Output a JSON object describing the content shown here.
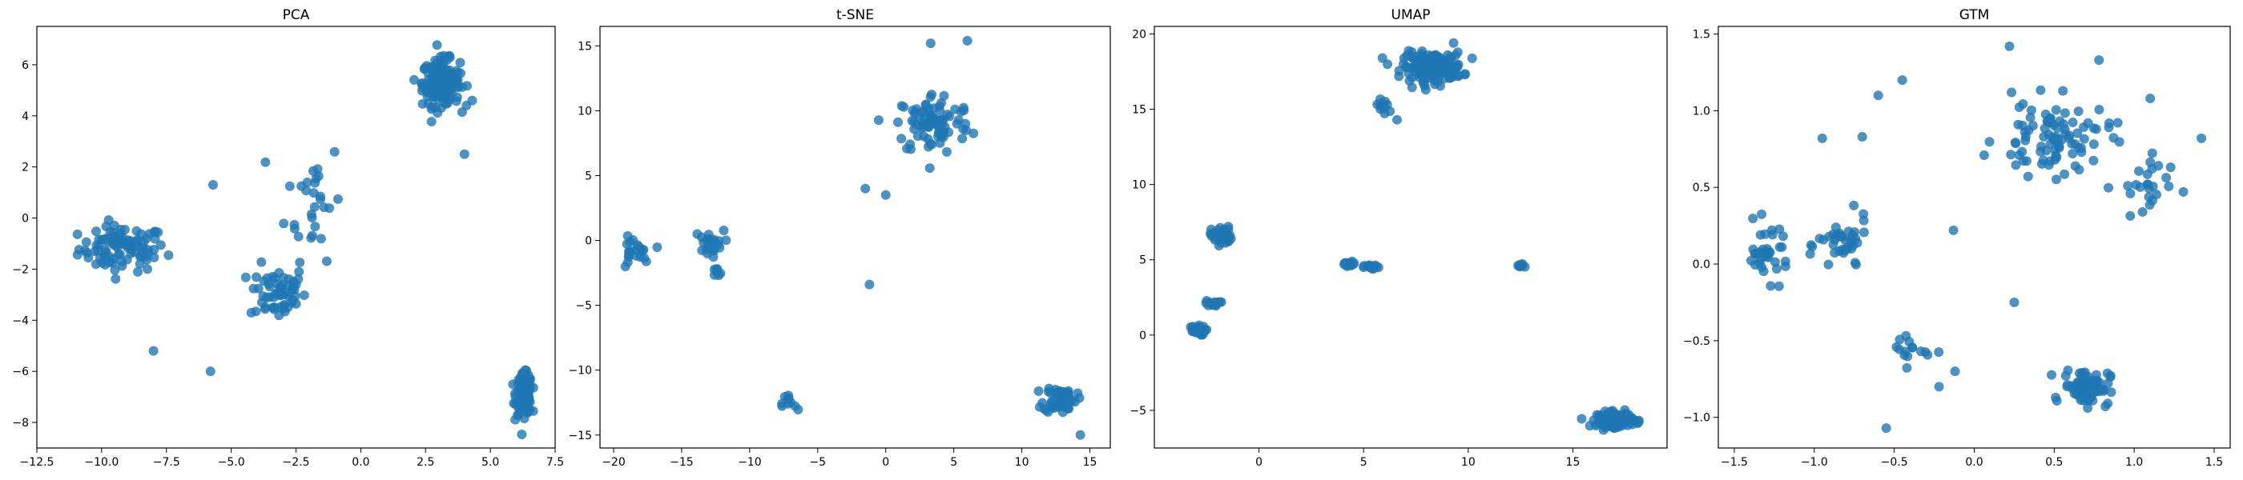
{
  "chart_data": [
    {
      "type": "scatter",
      "title": "PCA",
      "color": "#1f77b4",
      "xlim": [
        -12.5,
        7.5
      ],
      "ylim": [
        -9,
        7.5
      ],
      "xticks": [
        -12.5,
        -10.0,
        -7.5,
        -5.0,
        -2.5,
        0.0,
        2.5,
        5.0,
        7.5
      ],
      "xtick_labels": [
        "−12.5",
        "−10.0",
        "−7.5",
        "−5.0",
        "−2.5",
        "0.0",
        "2.5",
        "5.0",
        "7.5"
      ],
      "yticks": [
        -8,
        -6,
        -4,
        -2,
        0,
        2,
        4,
        6
      ],
      "ytick_labels": [
        "−8",
        "−6",
        "−4",
        "−2",
        "0",
        "2",
        "4",
        "6"
      ],
      "clusters": [
        {
          "center": [
            -9.2,
            -1.2
          ],
          "spread": [
            1.4,
            0.75
          ],
          "count": 95
        },
        {
          "center": [
            -3.2,
            -2.9
          ],
          "spread": [
            0.9,
            0.9
          ],
          "count": 60
        },
        {
          "center": [
            -1.8,
            0.8
          ],
          "spread": [
            0.9,
            2.0
          ],
          "count": 30
        },
        {
          "center": [
            3.1,
            5.3
          ],
          "spread": [
            0.6,
            0.75
          ],
          "count": 190
        },
        {
          "center": [
            6.3,
            -6.9
          ],
          "spread": [
            0.25,
            0.65
          ],
          "count": 160
        }
      ],
      "points": [
        [
          -8.0,
          -5.2
        ],
        [
          -5.8,
          -6.0
        ],
        [
          -5.7,
          1.3
        ],
        [
          4.0,
          2.5
        ],
        [
          4.3,
          4.6
        ]
      ]
    },
    {
      "type": "scatter",
      "title": "t-SNE",
      "color": "#1f77b4",
      "xlim": [
        -21,
        16.5
      ],
      "ylim": [
        -16,
        16.5
      ],
      "xticks": [
        -20,
        -15,
        -10,
        -5,
        0,
        5,
        10,
        15
      ],
      "xtick_labels": [
        "−20",
        "−15",
        "−10",
        "−5",
        "0",
        "5",
        "10",
        "15"
      ],
      "yticks": [
        -15,
        -10,
        -5,
        0,
        5,
        10,
        15
      ],
      "ytick_labels": [
        "−15",
        "−10",
        "−5",
        "0",
        "5",
        "10",
        "15"
      ],
      "clusters": [
        {
          "center": [
            -18.5,
            -1.0
          ],
          "spread": [
            0.9,
            1.0
          ],
          "count": 22
        },
        {
          "center": [
            -13.0,
            -0.2
          ],
          "spread": [
            0.9,
            0.8
          ],
          "count": 26
        },
        {
          "center": [
            -12.5,
            -2.6
          ],
          "spread": [
            0.4,
            0.4
          ],
          "count": 8
        },
        {
          "center": [
            -7.0,
            -12.6
          ],
          "spread": [
            0.5,
            0.8
          ],
          "count": 10
        },
        {
          "center": [
            3.5,
            9.0
          ],
          "spread": [
            2.3,
            2.0
          ],
          "count": 90
        },
        {
          "center": [
            12.8,
            -12.2
          ],
          "spread": [
            1.0,
            0.9
          ],
          "count": 55
        }
      ],
      "points": [
        [
          -1.2,
          -3.4
        ],
        [
          -1.5,
          4.0
        ],
        [
          0.0,
          3.5
        ],
        [
          3.3,
          15.2
        ],
        [
          6.0,
          15.4
        ],
        [
          14.3,
          -15.0
        ]
      ]
    },
    {
      "type": "scatter",
      "title": "UMAP",
      "color": "#1f77b4",
      "xlim": [
        -5.0,
        19.5
      ],
      "ylim": [
        -7.5,
        20.5
      ],
      "xticks": [
        0,
        5,
        10,
        15
      ],
      "xtick_labels": [
        "0",
        "5",
        "10",
        "15"
      ],
      "yticks": [
        -5,
        0,
        5,
        10,
        15,
        20
      ],
      "ytick_labels": [
        "−5",
        "0",
        "5",
        "10",
        "15",
        "20"
      ],
      "clusters": [
        {
          "center": [
            -3.0,
            0.3
          ],
          "spread": [
            0.35,
            0.25
          ],
          "count": 40
        },
        {
          "center": [
            -2.2,
            2.1
          ],
          "spread": [
            0.3,
            0.15
          ],
          "count": 15
        },
        {
          "center": [
            -1.8,
            6.6
          ],
          "spread": [
            0.4,
            0.5
          ],
          "count": 45
        },
        {
          "center": [
            4.3,
            4.7
          ],
          "spread": [
            0.3,
            0.15
          ],
          "count": 18
        },
        {
          "center": [
            5.4,
            4.5
          ],
          "spread": [
            0.3,
            0.12
          ],
          "count": 18
        },
        {
          "center": [
            12.5,
            4.6
          ],
          "spread": [
            0.15,
            0.12
          ],
          "count": 10
        },
        {
          "center": [
            6.0,
            15.2
          ],
          "spread": [
            0.4,
            0.5
          ],
          "count": 16
        },
        {
          "center": [
            8.3,
            17.8
          ],
          "spread": [
            1.2,
            0.8
          ],
          "count": 160
        },
        {
          "center": [
            17.0,
            -5.6
          ],
          "spread": [
            0.7,
            0.4
          ],
          "count": 170
        }
      ],
      "points": [
        [
          6.6,
          14.3
        ],
        [
          9.3,
          19.4
        ],
        [
          5.9,
          18.4
        ]
      ]
    },
    {
      "type": "scatter",
      "title": "GTM",
      "color": "#1f77b4",
      "xlim": [
        -1.6,
        1.6
      ],
      "ylim": [
        -1.2,
        1.55
      ],
      "xticks": [
        -1.5,
        -1.0,
        -0.5,
        0.0,
        0.5,
        1.0,
        1.5
      ],
      "xtick_labels": [
        "−1.5",
        "−1.0",
        "−0.5",
        "0.0",
        "0.5",
        "1.0",
        "1.5"
      ],
      "yticks": [
        -1.0,
        -0.5,
        0.0,
        0.5,
        1.0,
        1.5
      ],
      "ytick_labels": [
        "−1.0",
        "−0.5",
        "0.0",
        "0.5",
        "1.0",
        "1.5"
      ],
      "clusters": [
        {
          "center": [
            -1.3,
            0.08
          ],
          "spread": [
            0.12,
            0.15
          ],
          "count": 35
        },
        {
          "center": [
            -0.82,
            0.12
          ],
          "spread": [
            0.13,
            0.15
          ],
          "count": 40
        },
        {
          "center": [
            -0.4,
            -0.55
          ],
          "spread": [
            0.1,
            0.1
          ],
          "count": 15
        },
        {
          "center": [
            0.5,
            0.82
          ],
          "spread": [
            0.3,
            0.2
          ],
          "count": 90
        },
        {
          "center": [
            0.7,
            -0.8
          ],
          "spread": [
            0.12,
            0.1
          ],
          "count": 75
        },
        {
          "center": [
            1.05,
            0.5
          ],
          "spread": [
            0.15,
            0.18
          ],
          "count": 25
        }
      ],
      "points": [
        [
          -0.6,
          1.1
        ],
        [
          -0.95,
          0.82
        ],
        [
          -0.45,
          1.2
        ],
        [
          -0.7,
          0.83
        ],
        [
          0.22,
          1.42
        ],
        [
          0.78,
          1.33
        ],
        [
          1.42,
          0.82
        ],
        [
          0.25,
          -0.25
        ],
        [
          -0.55,
          -1.07
        ],
        [
          -0.12,
          -0.7
        ],
        [
          -0.22,
          -0.8
        ],
        [
          -0.13,
          0.22
        ],
        [
          1.1,
          1.08
        ]
      ]
    }
  ]
}
